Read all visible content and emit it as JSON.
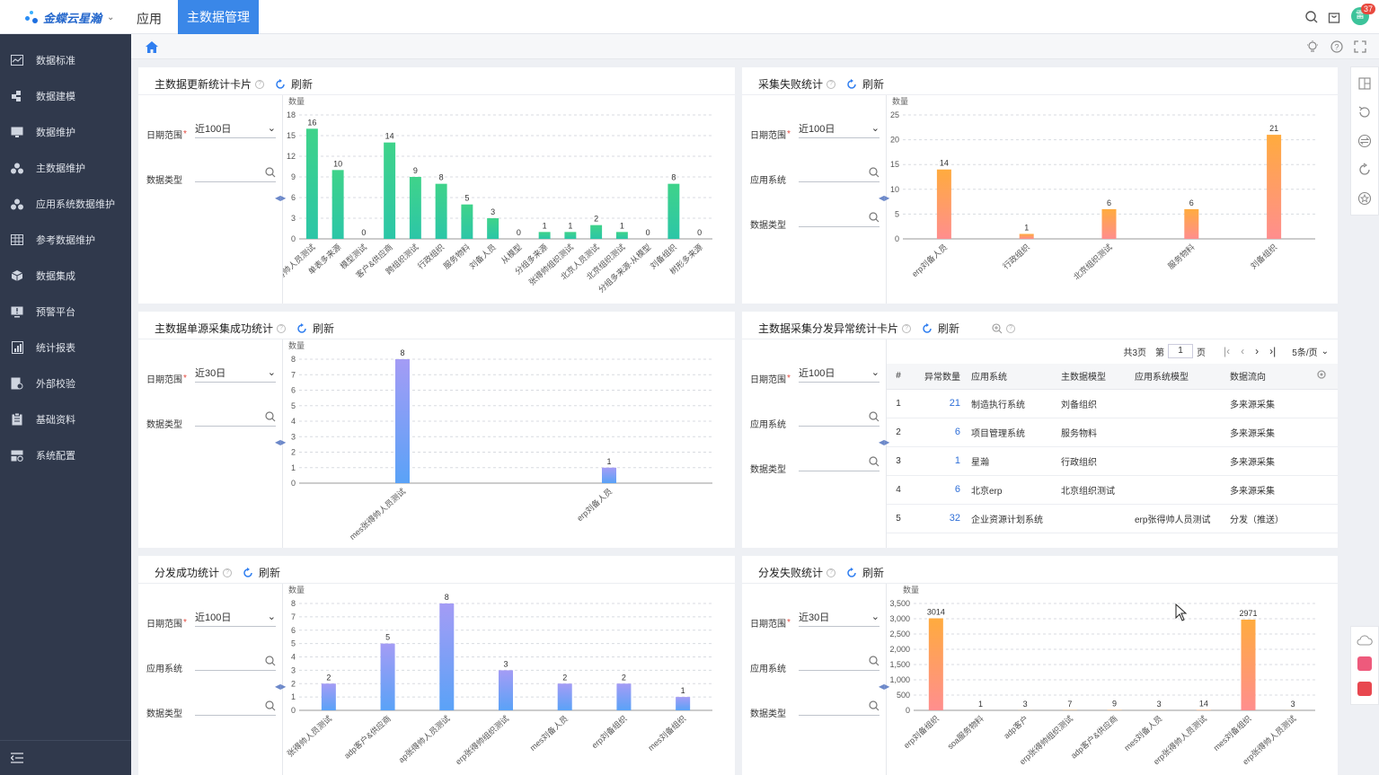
{
  "topbar": {
    "logo_text": "金蝶云星瀚",
    "nav_app": "应用",
    "nav_active": "主数据管理",
    "avatar_text": "雷",
    "notify_count": "37"
  },
  "sidebar": {
    "items": [
      {
        "label": "数据标准",
        "icon": "chart-line-icon"
      },
      {
        "label": "数据建模",
        "icon": "puzzle-icon"
      },
      {
        "label": "数据维护",
        "icon": "monitor-icon"
      },
      {
        "label": "主数据维护",
        "icon": "cluster-icon"
      },
      {
        "label": "应用系统数据维护",
        "icon": "cluster-icon"
      },
      {
        "label": "参考数据维护",
        "icon": "grid-icon"
      },
      {
        "label": "数据集成",
        "icon": "cube-icon"
      },
      {
        "label": "预警平台",
        "icon": "alert-screen-icon"
      },
      {
        "label": "统计报表",
        "icon": "report-icon"
      },
      {
        "label": "外部校验",
        "icon": "verify-doc-icon"
      },
      {
        "label": "基础资料",
        "icon": "clipboard-icon"
      },
      {
        "label": "系统配置",
        "icon": "config-icon"
      }
    ]
  },
  "common": {
    "refresh": "刷新",
    "date_range": "日期范围",
    "data_type": "数据类型",
    "app_system": "应用系统",
    "y_unit": "数量"
  },
  "cards": {
    "c1": {
      "title": "主数据更新统计卡片",
      "date_value": "近100日"
    },
    "c2": {
      "title": "采集失败统计",
      "date_value": "近100日"
    },
    "c3": {
      "title": "主数据单源采集成功统计",
      "date_value": "近30日"
    },
    "c4": {
      "title": "主数据采集分发异常统计卡片",
      "date_value": "近100日"
    },
    "c5": {
      "title": "分发成功统计",
      "date_value": "近100日"
    },
    "c6": {
      "title": "分发失败统计",
      "date_value": "近30日"
    }
  },
  "table": {
    "pager": {
      "total": "共3页",
      "page_prefix": "第",
      "page": "1",
      "page_suffix": "页",
      "page_size": "5条/页"
    },
    "headers": [
      "#",
      "异常数量",
      "应用系统",
      "主数据模型",
      "应用系统模型",
      "数据流向"
    ],
    "rows": [
      {
        "idx": "1",
        "count": "21",
        "system": "制造执行系统",
        "model": "刘备组织",
        "app_model": "",
        "flow": "多来源采集"
      },
      {
        "idx": "2",
        "count": "6",
        "system": "项目管理系统",
        "model": "服务物料",
        "app_model": "",
        "flow": "多来源采集"
      },
      {
        "idx": "3",
        "count": "1",
        "system": "星瀚",
        "model": "行政组织",
        "app_model": "",
        "flow": "多来源采集"
      },
      {
        "idx": "4",
        "count": "6",
        "system": "北京erp",
        "model": "北京组织测试",
        "app_model": "",
        "flow": "多来源采集"
      },
      {
        "idx": "5",
        "count": "32",
        "system": "企业资源计划系统",
        "model": "",
        "app_model": "erp张得帅人员测试",
        "flow": "分发（推送）"
      }
    ]
  },
  "colors": {
    "green": [
      "#3fd38a",
      "#2cc6a7"
    ],
    "orange": [
      "#ffab3e",
      "#ff8e8e"
    ],
    "bluepurple": [
      "#a49cf5",
      "#5aa2f7"
    ],
    "accent": "#3a87e8",
    "sidebar": "#30394c"
  },
  "chart_data": [
    {
      "id": "c1",
      "type": "bar",
      "ylabel": "数量",
      "ylim": [
        0,
        18
      ],
      "yticks": [
        0,
        3,
        6,
        9,
        12,
        15,
        18
      ],
      "gradient": "green",
      "categories": [
        "张得帅人员测试",
        "单表多来源",
        "模型测试",
        "客户&供应商",
        "跨组织测试",
        "行政组织",
        "服务物料",
        "刘备人员",
        "从模型",
        "分组多来源",
        "张得帅组织测试",
        "北京人员测试",
        "北京组织测试",
        "分组多来源-从模型",
        "刘备组织",
        "树形多来源"
      ],
      "values": [
        16,
        10,
        0,
        14,
        9,
        8,
        5,
        3,
        0,
        1,
        1,
        2,
        1,
        0,
        8,
        0
      ]
    },
    {
      "id": "c2",
      "type": "bar",
      "ylabel": "数量",
      "ylim": [
        0,
        25
      ],
      "yticks": [
        0,
        5,
        10,
        15,
        20,
        25
      ],
      "gradient": "orange",
      "categories": [
        "erp刘备人员",
        "行政组织",
        "北京组织测试",
        "服务物料",
        "刘备组织"
      ],
      "values": [
        14,
        1,
        6,
        6,
        21
      ]
    },
    {
      "id": "c3",
      "type": "bar",
      "ylabel": "数量",
      "ylim": [
        0,
        8
      ],
      "yticks": [
        0,
        1,
        2,
        3,
        4,
        5,
        6,
        7,
        8
      ],
      "gradient": "bluepurple",
      "categories": [
        "mes张得帅人员测试",
        "erp刘备人员"
      ],
      "values": [
        8,
        1
      ]
    },
    {
      "id": "c5",
      "type": "bar",
      "ylabel": "数量",
      "ylim": [
        0,
        8
      ],
      "yticks": [
        0,
        1,
        2,
        3,
        4,
        5,
        6,
        7,
        8
      ],
      "gradient": "bluepurple",
      "categories": [
        "张得帅人员测试",
        "adp客户&供应商",
        "ap张得帅人员测试",
        "erp张得帅组织测试",
        "mes刘备人员",
        "erp刘备组织",
        "mes刘备组织"
      ],
      "values": [
        2,
        5,
        8,
        3,
        2,
        2,
        1
      ]
    },
    {
      "id": "c6",
      "type": "bar",
      "ylabel": "数量",
      "ylim": [
        0,
        3500
      ],
      "yticks": [
        0,
        500,
        1000,
        1500,
        2000,
        2500,
        3000,
        3500
      ],
      "ytick_labels": [
        "0",
        "500",
        "1,000",
        "1,500",
        "2,000",
        "2,500",
        "3,000",
        "3,500"
      ],
      "gradient": "orange",
      "categories": [
        "erp刘备组织",
        "soa服务物料",
        "adp客户",
        "erp张得帅组织测试",
        "adp客户&供应商",
        "mes刘备人员",
        "erp张得帅人员测试",
        "mes刘备组织",
        "erp张得帅人员测试"
      ],
      "values": [
        3014,
        1,
        3,
        7,
        9,
        3,
        14,
        2971,
        3
      ]
    }
  ]
}
